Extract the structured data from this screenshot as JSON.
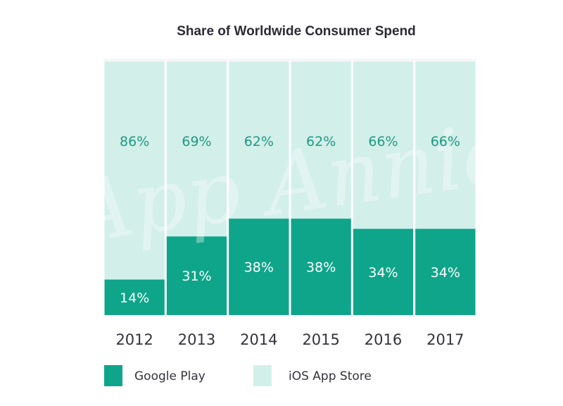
{
  "watermark_text": "App Annie",
  "chart_data": {
    "type": "bar",
    "stacked": true,
    "title": "Share of Worldwide Consumer Spend",
    "xlabel": "",
    "ylabel": "",
    "ylim": [
      0,
      100
    ],
    "categories": [
      "2012",
      "2013",
      "2014",
      "2015",
      "2016",
      "2017"
    ],
    "series": [
      {
        "name": "Google Play",
        "color": "#0fa58a",
        "label_color": "#ffffff",
        "values": [
          14,
          31,
          38,
          38,
          34,
          34
        ],
        "labels": [
          "14%",
          "31%",
          "38%",
          "38%",
          "34%",
          "34%"
        ]
      },
      {
        "name": "iOS App Store",
        "color": "#d3efea",
        "label_color": "#1e9a82",
        "values": [
          86,
          69,
          62,
          62,
          66,
          66
        ],
        "labels": [
          "86%",
          "69%",
          "62%",
          "62%",
          "66%",
          "66%"
        ]
      }
    ],
    "legend_position": "bottom-left",
    "grid": false
  }
}
